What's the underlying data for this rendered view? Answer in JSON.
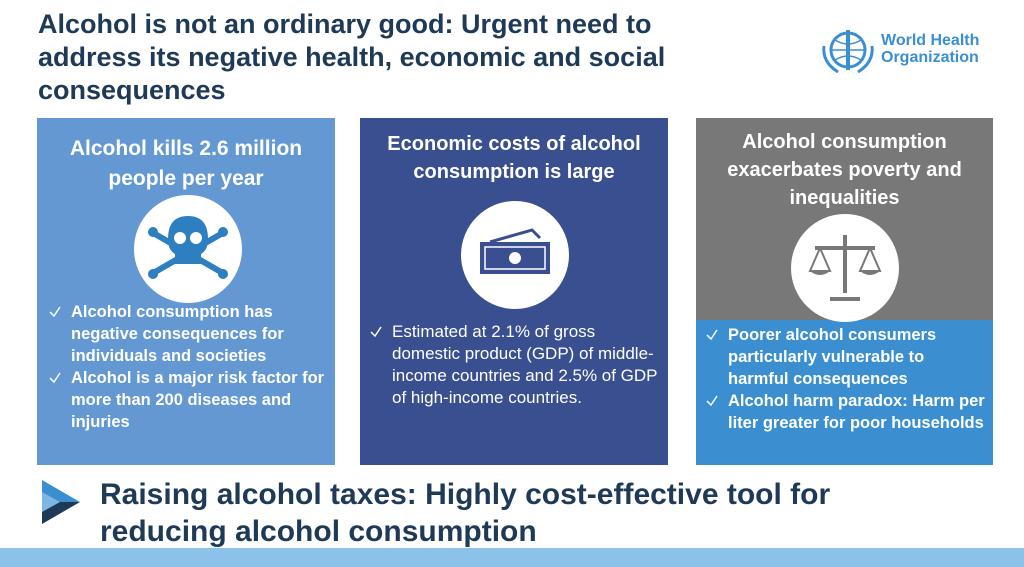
{
  "header": {
    "title": "Alcohol is not an ordinary good: Urgent need to address its negative health, economic and social consequences",
    "logo": [
      "World Health",
      "Organization"
    ]
  },
  "panels": [
    {
      "title": "Alcohol kills 2.6 million people per year",
      "bullets": [
        "Alcohol consumption has negative consequences for individuals and societies",
        "Alcohol is a major risk factor for more than 200 diseases and injuries"
      ]
    },
    {
      "title": "Economic costs of alcohol consumption is large",
      "bullets": [
        "Estimated at 2.1% of gross domestic product (GDP) of middle-income countries and 2.5% of GDP of high-income countries."
      ]
    },
    {
      "title": "Alcohol consumption exacerbates poverty and inequalities",
      "bullets": [
        "Poorer alcohol consumers particularly vulnerable to harmful consequences",
        "Alcohol harm paradox: Harm per liter greater for poor households"
      ]
    }
  ],
  "footer": {
    "text": "Raising alcohol taxes: Highly cost-effective tool for reducing alcohol consumption"
  }
}
